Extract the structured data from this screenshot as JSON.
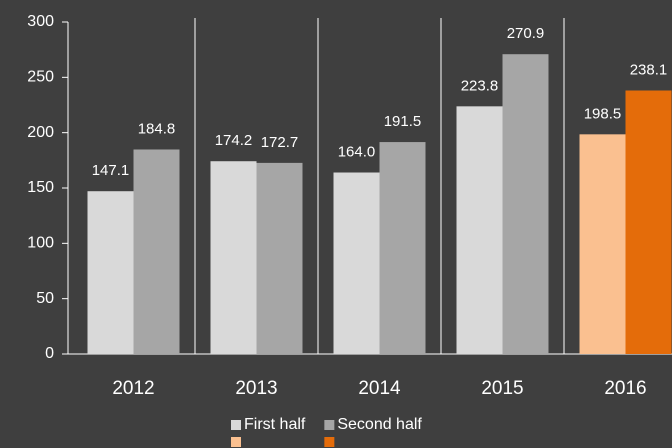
{
  "chart_data": {
    "type": "bar",
    "categories": [
      "2012",
      "2013",
      "2014",
      "2015",
      "2016"
    ],
    "series": [
      {
        "name": "First half",
        "color": "#d9d9d9",
        "colors": [
          "#d9d9d9",
          "#d9d9d9",
          "#d9d9d9",
          "#d9d9d9",
          "#fac090"
        ],
        "values": [
          147.1,
          174.2,
          164.0,
          223.8,
          198.5
        ],
        "value_labels": [
          "147.1",
          "174.2",
          "164.0",
          "223.8",
          "198.5"
        ]
      },
      {
        "name": "Second half",
        "color": "#a6a6a6",
        "colors": [
          "#a6a6a6",
          "#a6a6a6",
          "#a6a6a6",
          "#a6a6a6",
          "#e46c0a"
        ],
        "values": [
          184.8,
          172.7,
          191.5,
          270.9,
          238.1
        ],
        "value_labels": [
          "184.8",
          "172.7",
          "191.5",
          "270.9",
          "238.1"
        ]
      }
    ],
    "ylim": [
      0,
      300
    ],
    "yticks": [
      0,
      50,
      100,
      150,
      200,
      250,
      300
    ],
    "grid": false
  }
}
